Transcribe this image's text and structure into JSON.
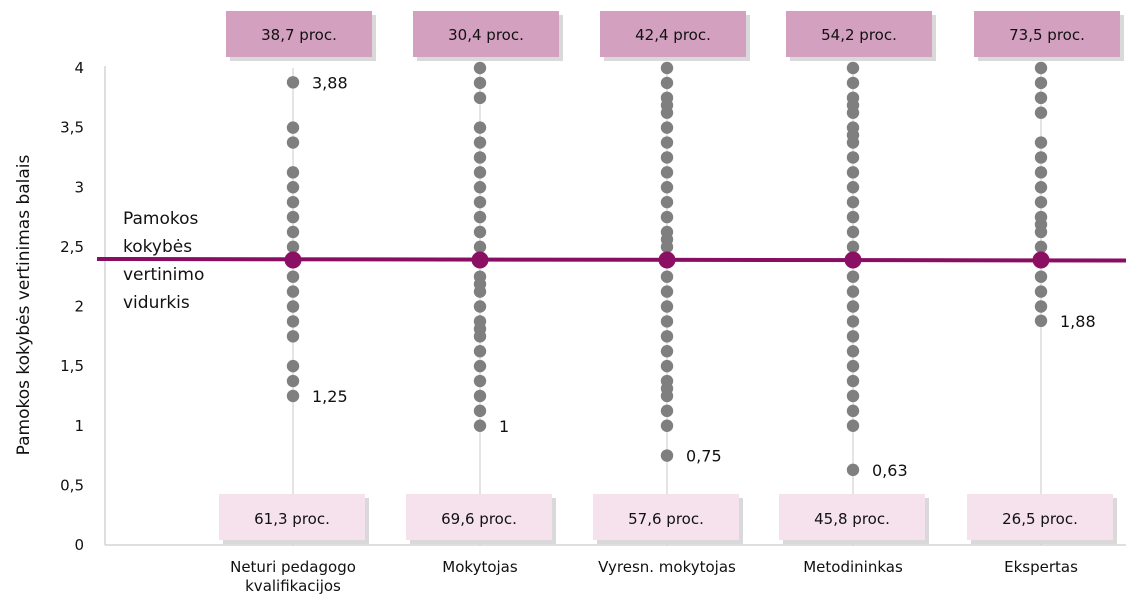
{
  "chart_data": {
    "type": "scatter",
    "title": "",
    "xlabel": "",
    "ylabel": "Pamokos kokybės vertinimas balais",
    "ylim": [
      0,
      4
    ],
    "yticks": [
      "0",
      "0,5",
      "1",
      "1,5",
      "2",
      "2,5",
      "3",
      "3,5",
      "4"
    ],
    "grid": false,
    "categories": [
      "Neturi pedagogo kvalifikacijos",
      "Mokytojas",
      "Vyresn. mokytojas",
      "Metodininkas",
      "Ekspertas"
    ],
    "series": [
      {
        "values": [
          [
            1.25,
            1.375,
            1.5,
            1.75,
            1.875,
            2.0,
            2.125,
            2.25,
            2.375,
            2.5,
            2.625,
            2.75,
            2.875,
            3.0,
            3.125,
            3.375,
            3.5,
            3.88
          ],
          [
            1.0,
            1.125,
            1.25,
            1.375,
            1.5,
            1.625,
            1.75,
            1.8125,
            1.875,
            2.0,
            2.125,
            2.1875,
            2.25,
            2.375,
            2.5,
            2.625,
            2.75,
            2.875,
            3.0,
            3.125,
            3.25,
            3.375,
            3.5,
            3.75,
            3.875,
            4.0
          ],
          [
            0.75,
            1.0,
            1.125,
            1.25,
            1.3125,
            1.375,
            1.5,
            1.625,
            1.75,
            1.875,
            2.0,
            2.125,
            2.25,
            2.375,
            2.5,
            2.5625,
            2.625,
            2.75,
            2.875,
            3.0,
            3.125,
            3.25,
            3.375,
            3.5,
            3.625,
            3.6875,
            3.75,
            3.875,
            4.0
          ],
          [
            0.63,
            1.0,
            1.125,
            1.25,
            1.375,
            1.5,
            1.625,
            1.75,
            1.875,
            2.0,
            2.125,
            2.25,
            2.375,
            2.5,
            2.625,
            2.75,
            2.875,
            3.0,
            3.125,
            3.25,
            3.375,
            3.4375,
            3.5,
            3.625,
            3.6875,
            3.75,
            3.875,
            4.0
          ],
          [
            1.88,
            2.0,
            2.125,
            2.25,
            2.375,
            2.5,
            2.625,
            2.6875,
            2.75,
            2.875,
            3.0,
            3.125,
            3.25,
            3.375,
            3.625,
            3.75,
            3.875,
            4.0
          ]
        ]
      }
    ],
    "point_labels": [
      {
        "category": 0,
        "value": 3.88,
        "text": "3,88"
      },
      {
        "category": 0,
        "value": 1.25,
        "text": "1,25"
      },
      {
        "category": 1,
        "value": 1.0,
        "text": "1"
      },
      {
        "category": 2,
        "value": 0.75,
        "text": "0,75"
      },
      {
        "category": 3,
        "value": 0.63,
        "text": "0,63"
      },
      {
        "category": 4,
        "value": 1.88,
        "text": "1,88"
      }
    ],
    "average": {
      "value": 2.39,
      "label": [
        "Pamokos",
        "kokybės",
        "vertinimo",
        "vidurkis"
      ]
    },
    "above_percent": [
      "38,7 proc.",
      "30,4 proc.",
      "42,4 proc.",
      "54,2 proc.",
      "73,5 proc."
    ],
    "below_percent": [
      "61,3 proc.",
      "69,6 proc.",
      "57,6 proc.",
      "45,8 proc.",
      "26,5 proc."
    ],
    "colors": {
      "points": "#7f7f7f",
      "average_line": "#880e63",
      "average_points": "#8b1063",
      "above_box": "#d4a0c0",
      "below_box": "#f5e2ec",
      "box_shadow": "#d9d9d9",
      "axis": "#bfbfbf"
    }
  }
}
